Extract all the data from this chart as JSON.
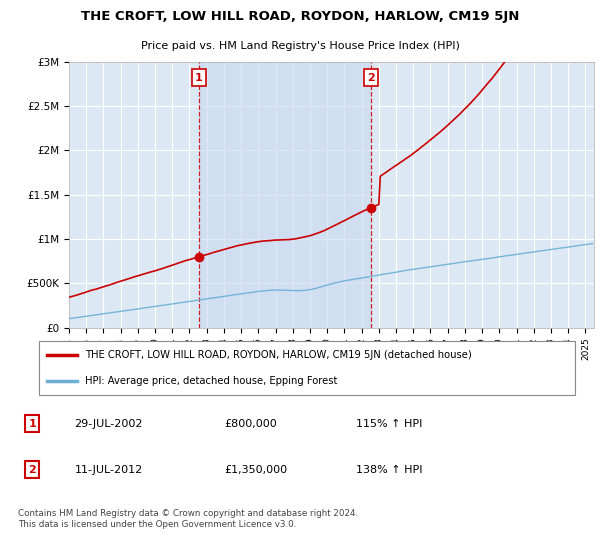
{
  "title": "THE CROFT, LOW HILL ROAD, ROYDON, HARLOW, CM19 5JN",
  "subtitle": "Price paid vs. HM Land Registry's House Price Index (HPI)",
  "background_color": "white",
  "plot_bg_color": "#dce9f5",
  "sale1_date": "29-JUL-2002",
  "sale1_price": 800000,
  "sale1_label": "115% ↑ HPI",
  "sale2_date": "11-JUL-2012",
  "sale2_price": 1350000,
  "sale2_label": "138% ↑ HPI",
  "legend_line1": "THE CROFT, LOW HILL ROAD, ROYDON, HARLOW, CM19 5JN (detached house)",
  "legend_line2": "HPI: Average price, detached house, Epping Forest",
  "footer": "Contains HM Land Registry data © Crown copyright and database right 2024.\nThis data is licensed under the Open Government Licence v3.0.",
  "hpi_color": "#6baed6",
  "price_color": "#cc0000",
  "vline_color": "#cc0000",
  "shade_color": "#c8d8f0",
  "ylim": [
    0,
    3000000
  ],
  "yticks": [
    0,
    500000,
    1000000,
    1500000,
    2000000,
    2500000,
    3000000
  ],
  "ytick_labels": [
    "£0",
    "£500K",
    "£1M",
    "£1.5M",
    "£2M",
    "£2.5M",
    "£3M"
  ],
  "sale1_year": 2002.54,
  "sale2_year": 2012.54,
  "xmin": 1995,
  "xmax": 2025.5
}
